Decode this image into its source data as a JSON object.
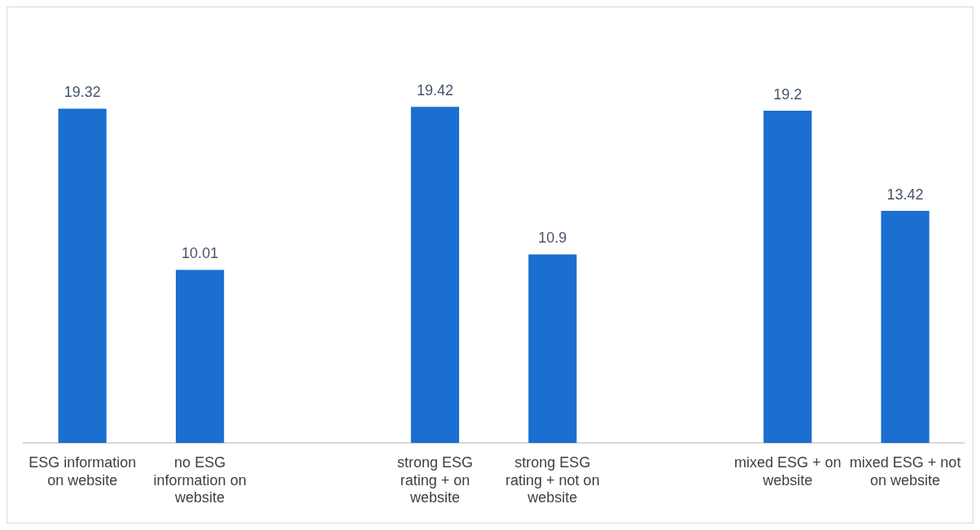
{
  "chart_data": {
    "type": "bar",
    "categories": [
      "ESG information on website",
      "no ESG information on website",
      null,
      "strong ESG rating + on website",
      "strong ESG rating + not on website",
      null,
      "mixed ESG + on website",
      "mixed ESG + not on website"
    ],
    "values": [
      19.32,
      10.01,
      null,
      19.42,
      10.9,
      null,
      19.2,
      13.42
    ],
    "color": "#1a6fd0",
    "data_labels": true,
    "grid": false,
    "legend": false
  }
}
